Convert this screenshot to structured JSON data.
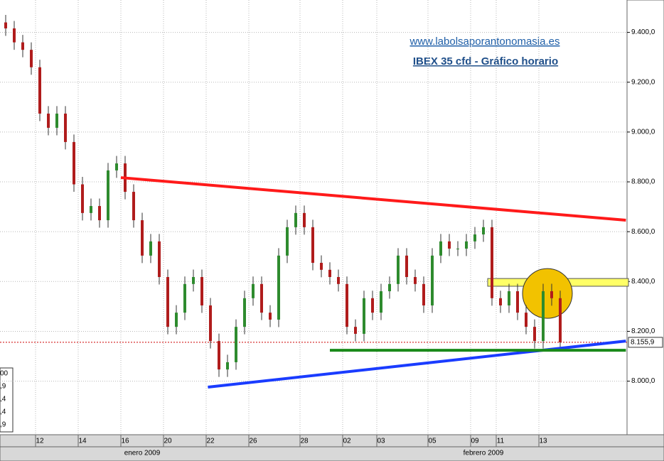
{
  "chart_data": {
    "type": "candlestick",
    "title": "IBEX 35 cfd - Gráfico horario",
    "subtitle": "www.labolsaporantonomasia.es",
    "categories": [
      null,
      null,
      null,
      null,
      "12",
      null,
      null,
      null,
      null,
      "14",
      null,
      null,
      null,
      null,
      "16",
      null,
      null,
      null,
      null,
      "20",
      null,
      null,
      null,
      null,
      "22",
      null,
      null,
      null,
      null,
      "26",
      null,
      null,
      null,
      null,
      null,
      "28",
      null,
      null,
      null,
      null,
      "02",
      null,
      null,
      null,
      "03",
      null,
      null,
      null,
      null,
      null,
      "05",
      null,
      null,
      null,
      null,
      "09",
      null,
      null,
      "11",
      null,
      null,
      null,
      null,
      "13",
      null,
      null
    ],
    "months": [
      {
        "label": "enero 2009",
        "at": 16
      },
      {
        "label": "febrero 2009",
        "at": 56
      }
    ],
    "open": [
      9440,
      9416,
      9360,
      9330,
      9260,
      9074,
      9017,
      9074,
      8960,
      8790,
      8675,
      8703,
      8646,
      8846,
      8874,
      8760,
      8646,
      8504,
      8561,
      8418,
      8218,
      8275,
      8390,
      8418,
      8304,
      8161,
      8047,
      8076,
      8218,
      8333,
      8390,
      8275,
      8247,
      8504,
      8618,
      8675,
      8618,
      8475,
      8447,
      8418,
      8390,
      8218,
      8190,
      8333,
      8275,
      8361,
      8390,
      8504,
      8418,
      8390,
      8304,
      8504,
      8561,
      8532,
      8532,
      8561,
      8589,
      8618,
      8333,
      8304,
      8361,
      8275,
      8218,
      8161,
      8361,
      8333
    ],
    "high": [
      9470,
      9446,
      9390,
      9360,
      9290,
      9104,
      9104,
      9104,
      8990,
      8820,
      8733,
      8733,
      8876,
      8904,
      8904,
      8790,
      8676,
      8591,
      8591,
      8448,
      8305,
      8420,
      8448,
      8448,
      8334,
      8191,
      8106,
      8248,
      8363,
      8420,
      8420,
      8305,
      8534,
      8648,
      8705,
      8705,
      8648,
      8505,
      8477,
      8448,
      8420,
      8248,
      8363,
      8363,
      8391,
      8420,
      8534,
      8534,
      8448,
      8420,
      8534,
      8591,
      8591,
      8562,
      8591,
      8619,
      8648,
      8648,
      8363,
      8391,
      8391,
      8305,
      8248,
      8391,
      8391,
      8363
    ],
    "low": [
      9386,
      9330,
      9300,
      9230,
      9044,
      8987,
      8987,
      8930,
      8760,
      8645,
      8645,
      8616,
      8616,
      8816,
      8730,
      8616,
      8474,
      8474,
      8388,
      8188,
      8188,
      8245,
      8360,
      8274,
      8131,
      8017,
      8017,
      8046,
      8188,
      8303,
      8245,
      8217,
      8217,
      8474,
      8588,
      8588,
      8445,
      8417,
      8388,
      8360,
      8188,
      8160,
      8160,
      8245,
      8245,
      8331,
      8360,
      8388,
      8360,
      8274,
      8274,
      8474,
      8502,
      8502,
      8502,
      8531,
      8559,
      8303,
      8274,
      8274,
      8245,
      8188,
      8131,
      8131,
      8303,
      8126
    ],
    "close": [
      9416,
      9360,
      9330,
      9260,
      9074,
      9017,
      9074,
      8960,
      8790,
      8675,
      8703,
      8646,
      8846,
      8874,
      8760,
      8646,
      8504,
      8561,
      8418,
      8218,
      8275,
      8390,
      8418,
      8304,
      8161,
      8047,
      8076,
      8218,
      8333,
      8390,
      8275,
      8247,
      8504,
      8618,
      8675,
      8618,
      8475,
      8447,
      8418,
      8390,
      8218,
      8190,
      8333,
      8275,
      8361,
      8390,
      8504,
      8418,
      8390,
      8304,
      8504,
      8561,
      8532,
      8532,
      8561,
      8589,
      8618,
      8333,
      8304,
      8361,
      8275,
      8218,
      8161,
      8361,
      8333,
      8156
    ],
    "up_color": "#2e8b2e",
    "down_color": "#b01c1c",
    "ylim": [
      7785,
      9530
    ],
    "yticks": [
      {
        "value": 8000,
        "label": "8.000,0"
      },
      {
        "value": 8200,
        "label": "8.200,0"
      },
      {
        "value": 8400,
        "label": "8.400,0"
      },
      {
        "value": 8600,
        "label": "8.600,0"
      },
      {
        "value": 8800,
        "label": "8.800,0"
      },
      {
        "value": 9000,
        "label": "9.000,0"
      },
      {
        "value": 9200,
        "label": "9.200,0"
      },
      {
        "value": 9400,
        "label": "9.400,0"
      }
    ],
    "last_price": {
      "value": 8155.9,
      "label": "8.155,9",
      "color": "#cc0000"
    },
    "trendlines": [
      {
        "color": "#ff1a1a",
        "x": [
          13.5,
          72.7
        ],
        "y": [
          8817,
          8646
        ]
      },
      {
        "color": "#1a3cff",
        "x": [
          23.7,
          72.7
        ],
        "y": [
          7976,
          8161
        ]
      },
      {
        "color": "#1a8a1a",
        "x": [
          38,
          72.7
        ],
        "y": [
          8124,
          8124
        ]
      }
    ],
    "band": {
      "color": "#ffff66",
      "x": [
        56.5,
        73
      ],
      "y": [
        8381,
        8412
      ]
    },
    "circle": {
      "color": "#f2c200",
      "x": 63.5,
      "y": 8352
    },
    "side_panel": [
      "00",
      ",9",
      ",4",
      ",4",
      ",9"
    ],
    "grid": true
  }
}
